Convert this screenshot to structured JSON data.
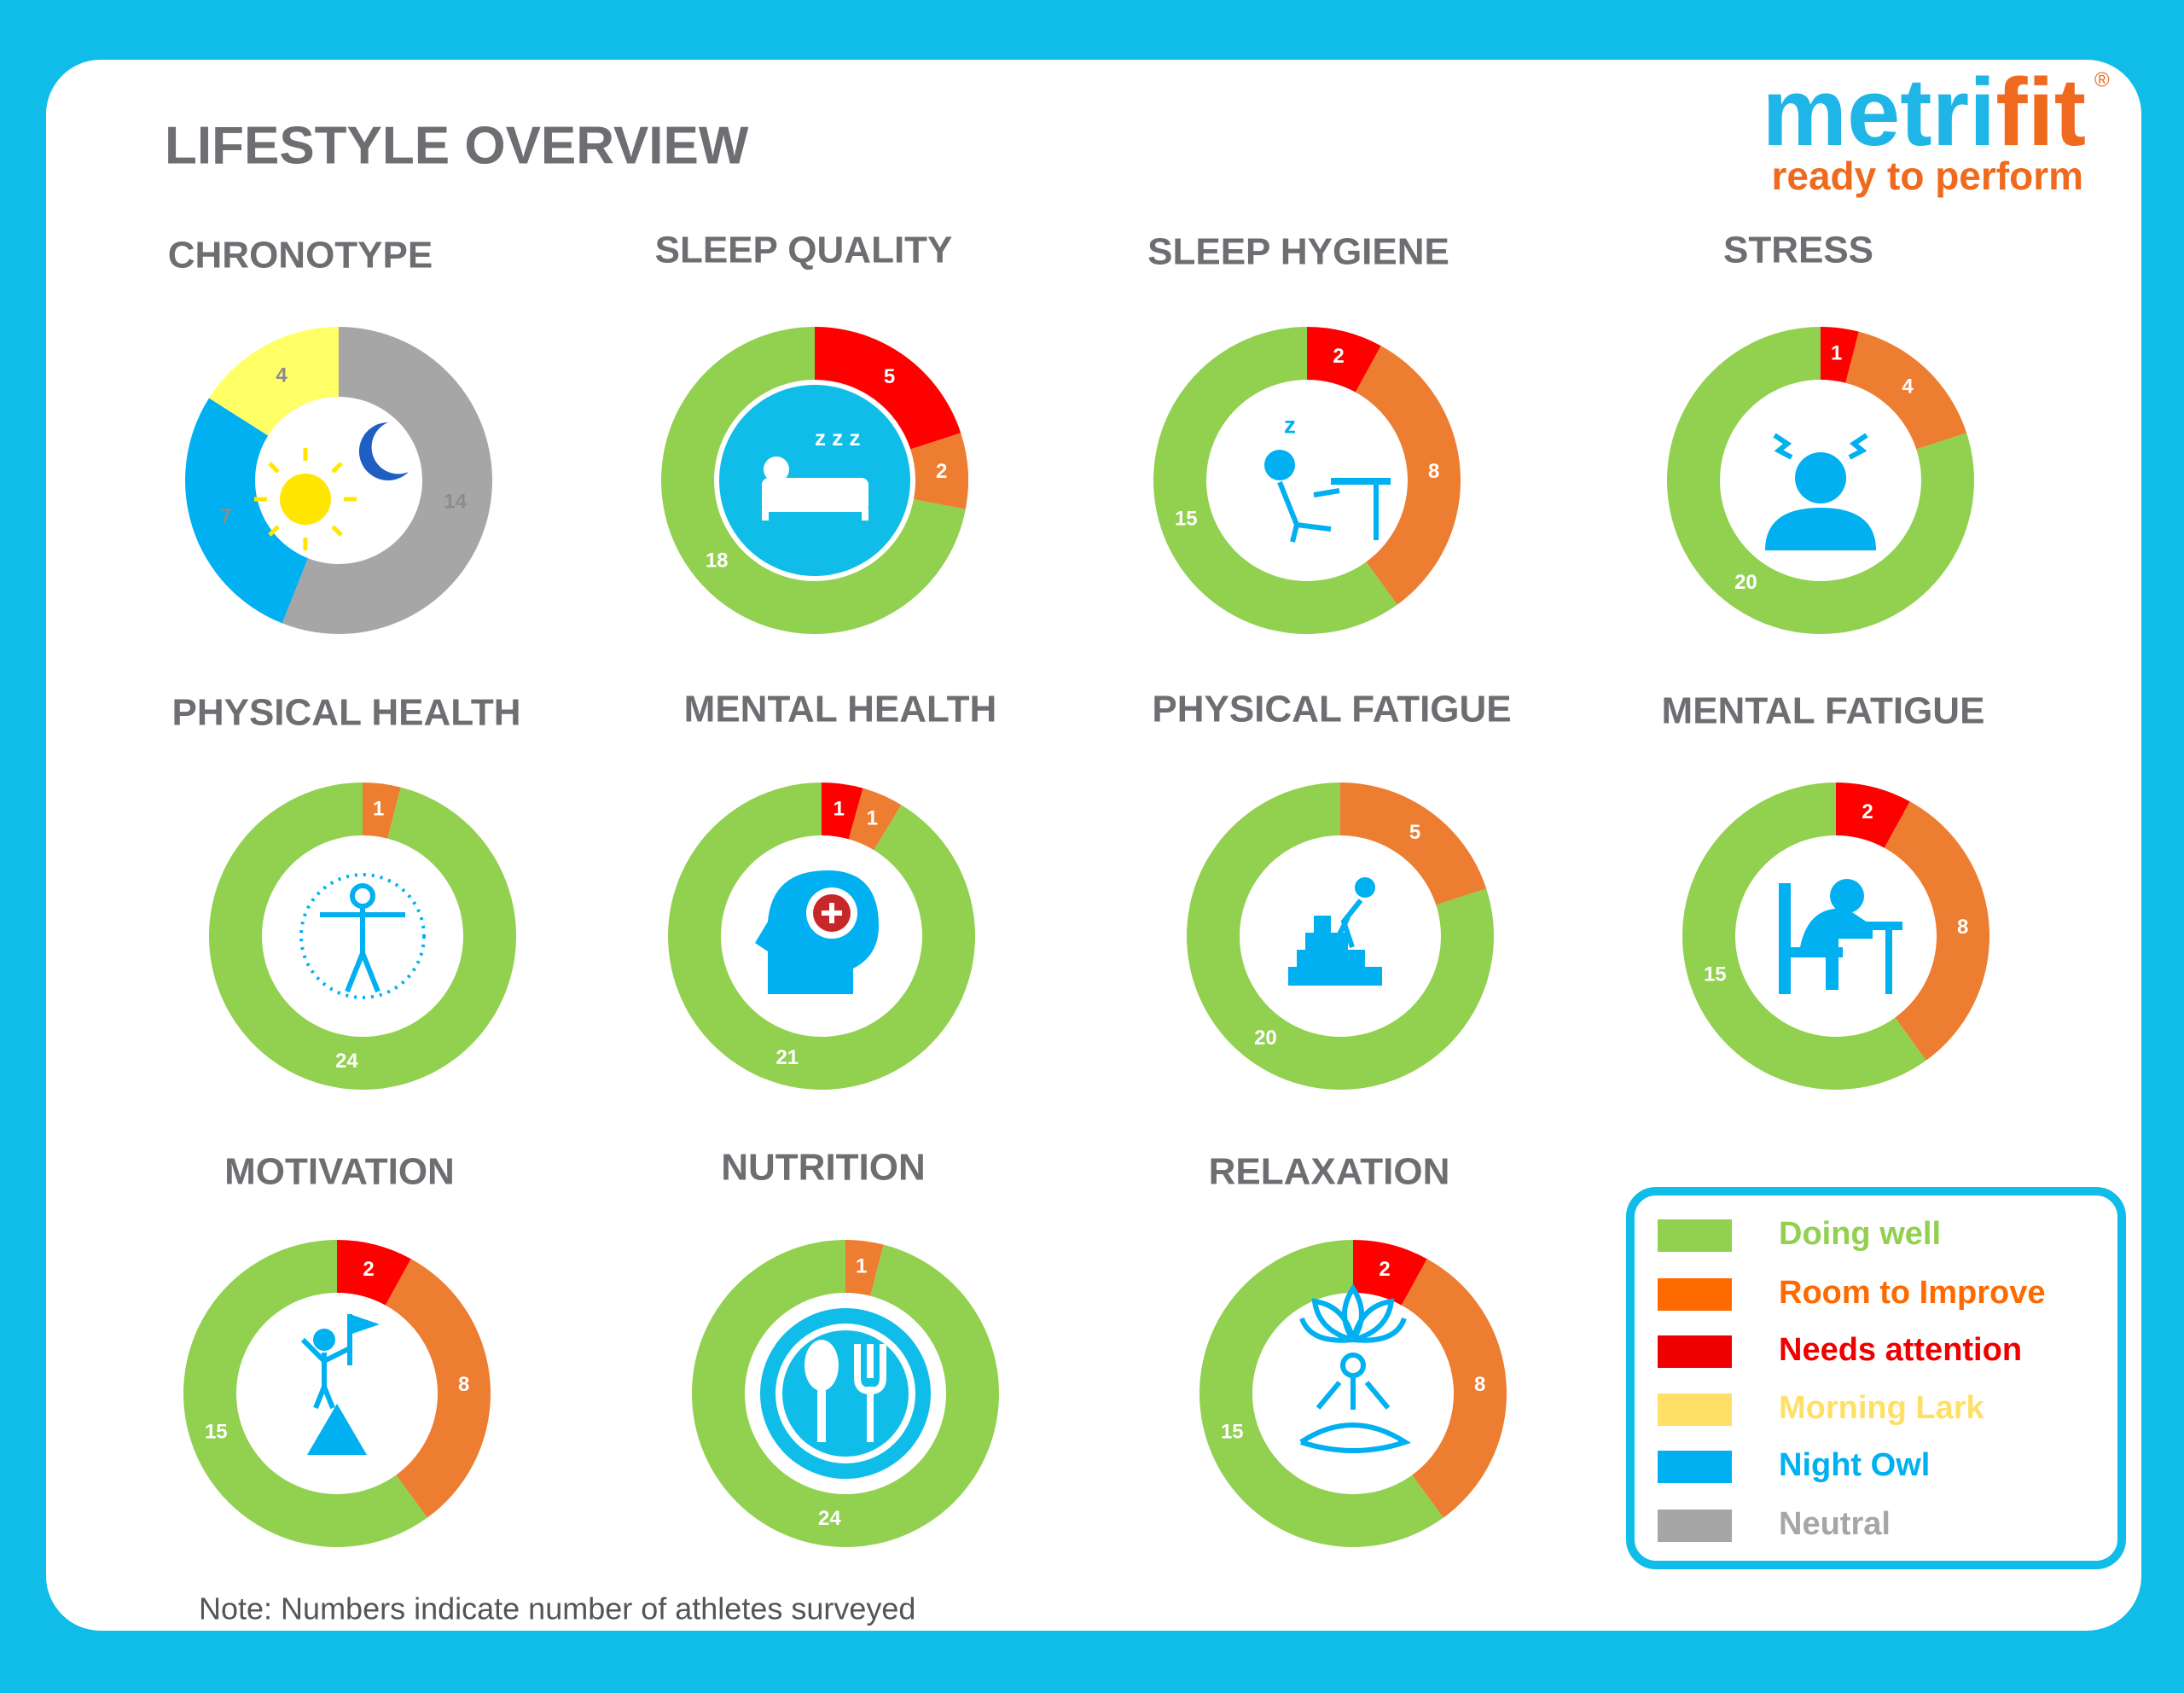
{
  "header": {
    "title": "LIFESTYLE OVERVIEW",
    "logo_main": "metri",
    "logo_accent": "fit",
    "logo_mark": "®",
    "tagline": "ready to perform"
  },
  "chart_data": [
    {
      "type": "pie",
      "title": "CHRONOTYPE",
      "values": [
        14,
        7,
        4
      ],
      "colors": [
        "#a6a6a6",
        "#00b0f0",
        "#ffff66"
      ],
      "label_color": "#8c8c8c"
    },
    {
      "type": "pie",
      "title": "SLEEP QUALITY",
      "values": [
        5,
        2,
        18
      ],
      "colors": [
        "#ff0000",
        "#ed7d31",
        "#92d050"
      ]
    },
    {
      "type": "pie",
      "title": "SLEEP HYGIENE",
      "values": [
        2,
        8,
        15
      ],
      "colors": [
        "#ff0000",
        "#ed7d31",
        "#92d050"
      ]
    },
    {
      "type": "pie",
      "title": "STRESS",
      "values": [
        1,
        4,
        20
      ],
      "colors": [
        "#ff0000",
        "#ed7d31",
        "#92d050"
      ]
    },
    {
      "type": "pie",
      "title": "PHYSICAL HEALTH",
      "values": [
        1,
        24
      ],
      "colors": [
        "#ed7d31",
        "#92d050"
      ]
    },
    {
      "type": "pie",
      "title": "MENTAL HEALTH",
      "values": [
        1,
        1,
        21
      ],
      "colors": [
        "#ff0000",
        "#ed7d31",
        "#92d050"
      ]
    },
    {
      "type": "pie",
      "title": "PHYSICAL FATIGUE",
      "values": [
        5,
        20
      ],
      "colors": [
        "#ed7d31",
        "#92d050"
      ]
    },
    {
      "type": "pie",
      "title": "MENTAL FATIGUE",
      "values": [
        2,
        8,
        15
      ],
      "colors": [
        "#ff0000",
        "#ed7d31",
        "#92d050"
      ]
    },
    {
      "type": "pie",
      "title": "MOTIVATION",
      "values": [
        2,
        8,
        15
      ],
      "colors": [
        "#ff0000",
        "#ed7d31",
        "#92d050"
      ]
    },
    {
      "type": "pie",
      "title": "NUTRITION",
      "values": [
        1,
        24
      ],
      "colors": [
        "#ed7d31",
        "#92d050"
      ]
    },
    {
      "type": "pie",
      "title": "RELAXATION",
      "values": [
        2,
        8,
        15
      ],
      "colors": [
        "#ff0000",
        "#ed7d31",
        "#92d050"
      ]
    }
  ],
  "legend": [
    {
      "name": "Doing well",
      "color": "#92d050"
    },
    {
      "name": "Room to Improve",
      "color": "#ff6a00"
    },
    {
      "name": "Needs attention",
      "color": "#ee0000"
    },
    {
      "name": "Morning Lark",
      "color": "#ffe066"
    },
    {
      "name": "Night Owl",
      "color": "#00b0f0"
    },
    {
      "name": "Neutral",
      "color": "#a6a6a6"
    }
  ],
  "note": "Note: Numbers indicate number of athletes surveyed"
}
